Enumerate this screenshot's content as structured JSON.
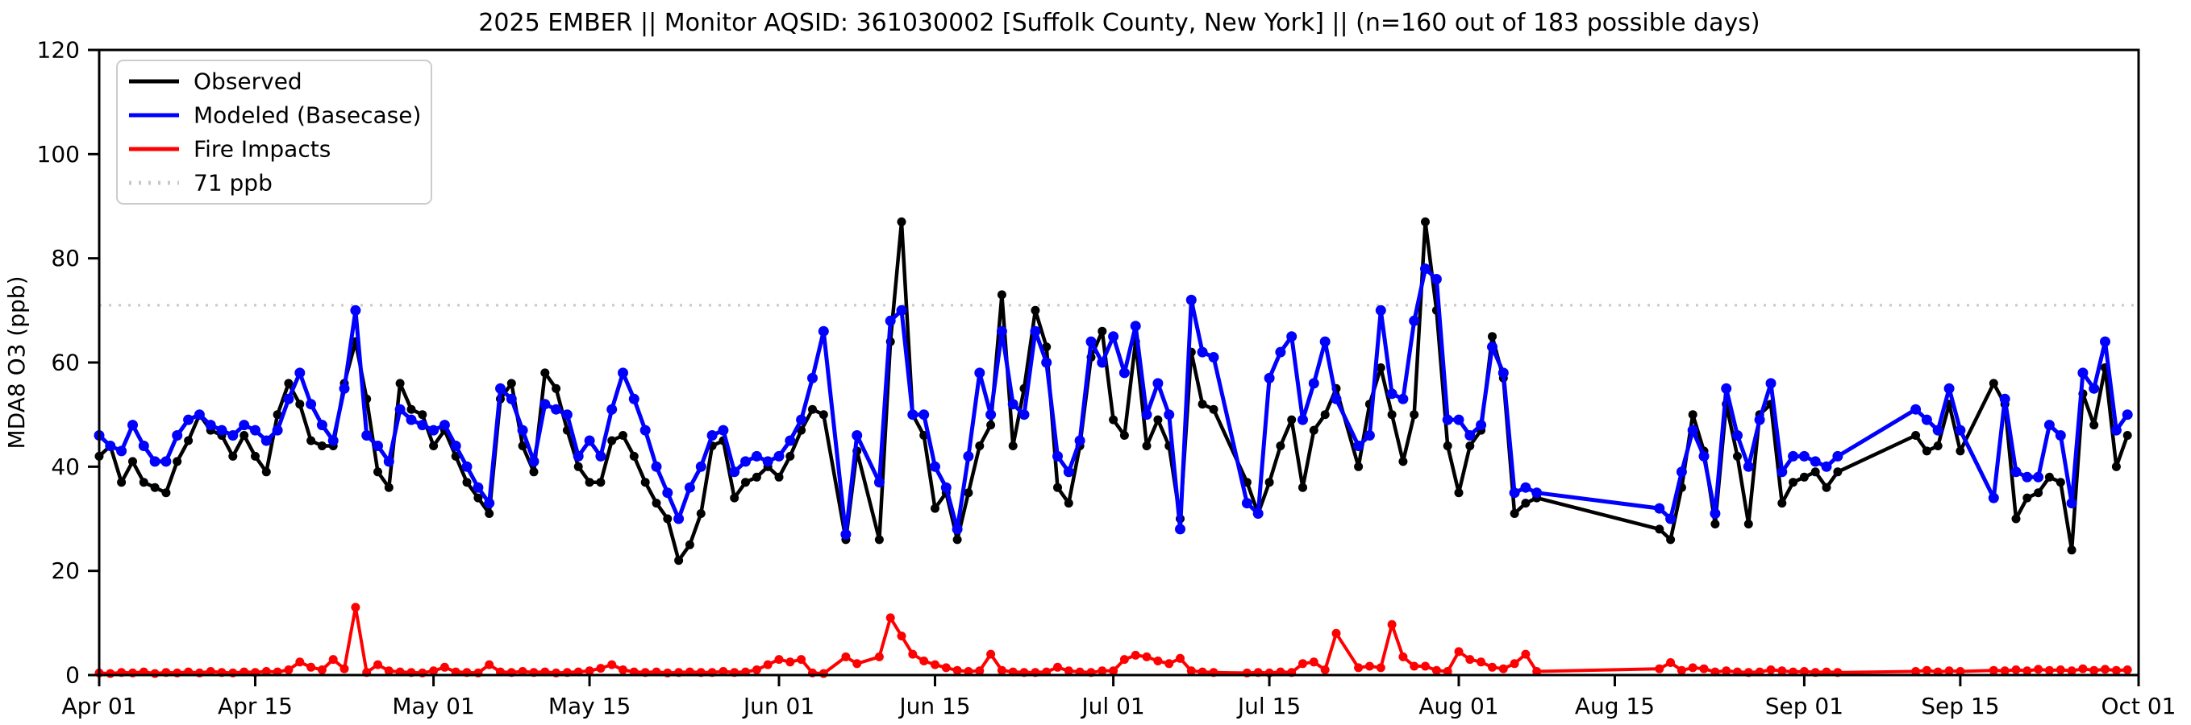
{
  "chart_data": {
    "type": "line",
    "title": "2025 EMBER || Monitor AQSID: 361030002 [Suffolk County, New York] || (n=160 out of 183 possible days)",
    "ylabel": "MDA8 O3 (ppb)",
    "ylim": [
      0,
      120
    ],
    "yticks": [
      0,
      20,
      40,
      60,
      80,
      100,
      120
    ],
    "x_range_days": 183,
    "xticks": [
      {
        "day": 0,
        "label": "Apr 01"
      },
      {
        "day": 14,
        "label": "Apr 15"
      },
      {
        "day": 30,
        "label": "May 01"
      },
      {
        "day": 44,
        "label": "May 15"
      },
      {
        "day": 61,
        "label": "Jun 01"
      },
      {
        "day": 75,
        "label": "Jun 15"
      },
      {
        "day": 91,
        "label": "Jul 01"
      },
      {
        "day": 105,
        "label": "Jul 15"
      },
      {
        "day": 122,
        "label": "Aug 01"
      },
      {
        "day": 136,
        "label": "Aug 15"
      },
      {
        "day": 153,
        "label": "Sep 01"
      },
      {
        "day": 167,
        "label": "Sep 15"
      },
      {
        "day": 183,
        "label": "Oct 01"
      }
    ],
    "threshold": {
      "value": 71,
      "label": "71 ppb",
      "color": "#c8c8c8"
    },
    "legend_position": "upper-left",
    "grid": false,
    "series": [
      {
        "name": "Observed",
        "color": "#000000",
        "key": 2
      },
      {
        "name": "Modeled (Basecase)",
        "color": "#0000ff",
        "key": 3
      },
      {
        "name": "Fire Impacts",
        "color": "#ff0000",
        "key": 4
      }
    ],
    "point_format": [
      "date",
      "day_index",
      "observed_ppb",
      "modeled_ppb",
      "fire_impact_ppb"
    ],
    "points": [
      [
        "Apr 01",
        0,
        42,
        46,
        0.4
      ],
      [
        "Apr 02",
        1,
        44,
        44,
        0.3
      ],
      [
        "Apr 03",
        2,
        37,
        43,
        0.5
      ],
      [
        "Apr 04",
        3,
        41,
        48,
        0.4
      ],
      [
        "Apr 05",
        4,
        37,
        44,
        0.6
      ],
      [
        "Apr 06",
        5,
        36,
        41,
        0.3
      ],
      [
        "Apr 07",
        6,
        35,
        41,
        0.5
      ],
      [
        "Apr 08",
        7,
        41,
        46,
        0.4
      ],
      [
        "Apr 09",
        8,
        45,
        49,
        0.6
      ],
      [
        "Apr 10",
        9,
        50,
        50,
        0.4
      ],
      [
        "Apr 11",
        10,
        47,
        48,
        0.7
      ],
      [
        "Apr 12",
        11,
        46,
        47,
        0.5
      ],
      [
        "Apr 13",
        12,
        42,
        46,
        0.4
      ],
      [
        "Apr 14",
        13,
        46,
        48,
        0.6
      ],
      [
        "Apr 15",
        14,
        42,
        47,
        0.5
      ],
      [
        "Apr 16",
        15,
        39,
        45,
        0.7
      ],
      [
        "Apr 17",
        16,
        50,
        47,
        0.6
      ],
      [
        "Apr 18",
        17,
        56,
        53,
        1.0
      ],
      [
        "Apr 19",
        18,
        52,
        58,
        2.5
      ],
      [
        "Apr 20",
        19,
        45,
        52,
        1.5
      ],
      [
        "Apr 21",
        20,
        44,
        48,
        1.0
      ],
      [
        "Apr 22",
        21,
        44,
        45,
        3.0
      ],
      [
        "Apr 23",
        22,
        56,
        55,
        1.2
      ],
      [
        "Apr 24",
        23,
        64,
        70,
        13.0
      ],
      [
        "Apr 25",
        24,
        53,
        46,
        0.5
      ],
      [
        "Apr 26",
        25,
        39,
        44,
        2.0
      ],
      [
        "Apr 27",
        26,
        36,
        41,
        0.8
      ],
      [
        "Apr 28",
        27,
        56,
        51,
        0.6
      ],
      [
        "Apr 29",
        28,
        51,
        49,
        0.5
      ],
      [
        "Apr 30",
        29,
        50,
        48,
        0.4
      ],
      [
        "May 01",
        30,
        44,
        47,
        0.8
      ],
      [
        "May 02",
        31,
        47,
        48,
        1.5
      ],
      [
        "May 03",
        32,
        42,
        44,
        0.6
      ],
      [
        "May 04",
        33,
        37,
        40,
        0.5
      ],
      [
        "May 05",
        34,
        34,
        36,
        0.4
      ],
      [
        "May 06",
        35,
        31,
        33,
        2.0
      ],
      [
        "May 07",
        36,
        53,
        55,
        0.6
      ],
      [
        "May 08",
        37,
        56,
        53,
        0.5
      ],
      [
        "May 09",
        38,
        44,
        47,
        0.7
      ],
      [
        "May 10",
        39,
        39,
        41,
        0.5
      ],
      [
        "May 11",
        40,
        58,
        52,
        0.6
      ],
      [
        "May 12",
        41,
        55,
        51,
        0.4
      ],
      [
        "May 13",
        42,
        47,
        50,
        0.5
      ],
      [
        "May 14",
        43,
        40,
        42,
        0.6
      ],
      [
        "May 15",
        44,
        37,
        45,
        0.8
      ],
      [
        "May 16",
        45,
        37,
        42,
        1.3
      ],
      [
        "May 17",
        46,
        45,
        51,
        2.0
      ],
      [
        "May 18",
        47,
        46,
        58,
        1.0
      ],
      [
        "May 19",
        48,
        42,
        53,
        0.6
      ],
      [
        "May 20",
        49,
        37,
        47,
        0.5
      ],
      [
        "May 21",
        50,
        33,
        40,
        0.6
      ],
      [
        "May 22",
        51,
        30,
        35,
        0.4
      ],
      [
        "May 23",
        52,
        22,
        30,
        0.5
      ],
      [
        "May 24",
        53,
        25,
        36,
        0.6
      ],
      [
        "May 25",
        54,
        31,
        40,
        0.5
      ],
      [
        "May 26",
        55,
        44,
        46,
        0.5
      ],
      [
        "May 27",
        56,
        45,
        47,
        0.7
      ],
      [
        "May 28",
        57,
        34,
        39,
        0.5
      ],
      [
        "May 29",
        58,
        37,
        41,
        0.6
      ],
      [
        "May 30",
        59,
        38,
        42,
        1.0
      ],
      [
        "May 31",
        60,
        40,
        41,
        2.0
      ],
      [
        "Jun 01",
        61,
        38,
        42,
        3.0
      ],
      [
        "Jun 02",
        62,
        42,
        45,
        2.5
      ],
      [
        "Jun 03",
        63,
        47,
        49,
        3.0
      ],
      [
        "Jun 04",
        64,
        51,
        57,
        0.4
      ],
      [
        "Jun 05",
        65,
        50,
        66,
        0.3
      ],
      [
        "Jun 07",
        67,
        26,
        27,
        3.5
      ],
      [
        "Jun 08",
        68,
        43,
        46,
        2.2
      ],
      [
        "Jun 10",
        70,
        26,
        37,
        3.5
      ],
      [
        "Jun 11",
        71,
        64,
        68,
        11.0
      ],
      [
        "Jun 12",
        72,
        87,
        70,
        7.5
      ],
      [
        "Jun 13",
        73,
        50,
        50,
        4.0
      ],
      [
        "Jun 14",
        74,
        46,
        50,
        2.7
      ],
      [
        "Jun 15",
        75,
        32,
        40,
        2.0
      ],
      [
        "Jun 16",
        76,
        35,
        36,
        1.4
      ],
      [
        "Jun 17",
        77,
        26,
        28,
        0.9
      ],
      [
        "Jun 18",
        78,
        35,
        42,
        0.7
      ],
      [
        "Jun 19",
        79,
        44,
        58,
        0.8
      ],
      [
        "Jun 20",
        80,
        48,
        50,
        4.0
      ],
      [
        "Jun 21",
        81,
        73,
        66,
        0.9
      ],
      [
        "Jun 22",
        82,
        44,
        52,
        0.6
      ],
      [
        "Jun 23",
        83,
        55,
        50,
        0.5
      ],
      [
        "Jun 24",
        84,
        70,
        66,
        0.5
      ],
      [
        "Jun 25",
        85,
        63,
        60,
        0.6
      ],
      [
        "Jun 26",
        86,
        36,
        42,
        1.5
      ],
      [
        "Jun 27",
        87,
        33,
        39,
        0.8
      ],
      [
        "Jun 28",
        88,
        44,
        45,
        0.6
      ],
      [
        "Jun 29",
        89,
        61,
        64,
        0.5
      ],
      [
        "Jun 30",
        90,
        66,
        60,
        0.8
      ],
      [
        "Jul 01",
        91,
        49,
        65,
        0.8
      ],
      [
        "Jul 02",
        92,
        46,
        58,
        3.0
      ],
      [
        "Jul 03",
        93,
        64,
        67,
        3.8
      ],
      [
        "Jul 04",
        94,
        44,
        50,
        3.5
      ],
      [
        "Jul 05",
        95,
        49,
        56,
        2.7
      ],
      [
        "Jul 06",
        96,
        44,
        50,
        2.2
      ],
      [
        "Jul 07",
        97,
        30,
        28,
        3.2
      ],
      [
        "Jul 08",
        98,
        62,
        72,
        0.8
      ],
      [
        "Jul 09",
        99,
        52,
        62,
        0.6
      ],
      [
        "Jul 10",
        100,
        51,
        61,
        0.5
      ],
      [
        "Jul 13",
        103,
        37,
        33,
        0.4
      ],
      [
        "Jul 14",
        104,
        31,
        31,
        0.5
      ],
      [
        "Jul 15",
        105,
        37,
        57,
        0.4
      ],
      [
        "Jul 16",
        106,
        44,
        62,
        0.6
      ],
      [
        "Jul 17",
        107,
        49,
        65,
        0.5
      ],
      [
        "Jul 18",
        108,
        36,
        49,
        2.2
      ],
      [
        "Jul 19",
        109,
        47,
        56,
        2.5
      ],
      [
        "Jul 20",
        110,
        50,
        64,
        1.0
      ],
      [
        "Jul 21",
        111,
        55,
        53,
        8.0
      ],
      [
        "Jul 23",
        113,
        40,
        44,
        1.4
      ],
      [
        "Jul 24",
        114,
        52,
        46,
        1.7
      ],
      [
        "Jul 25",
        115,
        59,
        70,
        1.4
      ],
      [
        "Jul 26",
        116,
        50,
        54,
        9.7
      ],
      [
        "Jul 27",
        117,
        41,
        53,
        3.5
      ],
      [
        "Jul 28",
        118,
        50,
        68,
        1.7
      ],
      [
        "Jul 29",
        119,
        87,
        78,
        1.7
      ],
      [
        "Jul 30",
        120,
        70,
        76,
        0.9
      ],
      [
        "Jul 31",
        121,
        44,
        49,
        0.7
      ],
      [
        "Aug 01",
        122,
        35,
        49,
        4.5
      ],
      [
        "Aug 02",
        123,
        44,
        46,
        3.0
      ],
      [
        "Aug 03",
        124,
        47,
        48,
        2.5
      ],
      [
        "Aug 04",
        125,
        65,
        63,
        1.5
      ],
      [
        "Aug 05",
        126,
        57,
        58,
        1.2
      ],
      [
        "Aug 06",
        127,
        31,
        35,
        2.2
      ],
      [
        "Aug 07",
        128,
        33,
        36,
        4.0
      ],
      [
        "Aug 08",
        129,
        34,
        35,
        0.7
      ],
      [
        "Aug 19",
        140,
        28,
        32,
        1.2
      ],
      [
        "Aug 20",
        141,
        26,
        30,
        2.4
      ],
      [
        "Aug 21",
        142,
        36,
        39,
        0.9
      ],
      [
        "Aug 22",
        143,
        50,
        47,
        1.4
      ],
      [
        "Aug 23",
        144,
        43,
        42,
        1.2
      ],
      [
        "Aug 24",
        145,
        29,
        31,
        0.6
      ],
      [
        "Aug 25",
        146,
        52,
        55,
        0.8
      ],
      [
        "Aug 26",
        147,
        42,
        46,
        0.6
      ],
      [
        "Aug 27",
        148,
        29,
        40,
        0.5
      ],
      [
        "Aug 28",
        149,
        50,
        49,
        0.6
      ],
      [
        "Aug 29",
        150,
        52,
        56,
        1.0
      ],
      [
        "Aug 30",
        151,
        33,
        39,
        0.8
      ],
      [
        "Aug 31",
        152,
        37,
        42,
        0.6
      ],
      [
        "Sep 01",
        153,
        38,
        42,
        0.7
      ],
      [
        "Sep 02",
        154,
        39,
        41,
        0.5
      ],
      [
        "Sep 03",
        155,
        36,
        40,
        0.6
      ],
      [
        "Sep 04",
        156,
        39,
        42,
        0.5
      ],
      [
        "Sep 11",
        163,
        46,
        51,
        0.7
      ],
      [
        "Sep 12",
        164,
        43,
        49,
        0.9
      ],
      [
        "Sep 13",
        165,
        44,
        47,
        0.6
      ],
      [
        "Sep 14",
        166,
        52,
        55,
        0.8
      ],
      [
        "Sep 15",
        167,
        43,
        47,
        0.7
      ],
      [
        "Sep 18",
        170,
        56,
        34,
        0.9
      ],
      [
        "Sep 19",
        171,
        52,
        53,
        0.8
      ],
      [
        "Sep 20",
        172,
        30,
        39,
        1.0
      ],
      [
        "Sep 21",
        173,
        34,
        38,
        0.8
      ],
      [
        "Sep 22",
        174,
        35,
        38,
        1.1
      ],
      [
        "Sep 23",
        175,
        38,
        48,
        0.9
      ],
      [
        "Sep 24",
        176,
        37,
        46,
        1.0
      ],
      [
        "Sep 25",
        177,
        24,
        33,
        0.8
      ],
      [
        "Sep 26",
        178,
        54,
        58,
        1.2
      ],
      [
        "Sep 27",
        179,
        48,
        55,
        0.9
      ],
      [
        "Sep 28",
        180,
        59,
        64,
        1.1
      ],
      [
        "Sep 29",
        181,
        40,
        47,
        0.9
      ],
      [
        "Sep 30",
        182,
        46,
        50,
        1.0
      ]
    ]
  }
}
